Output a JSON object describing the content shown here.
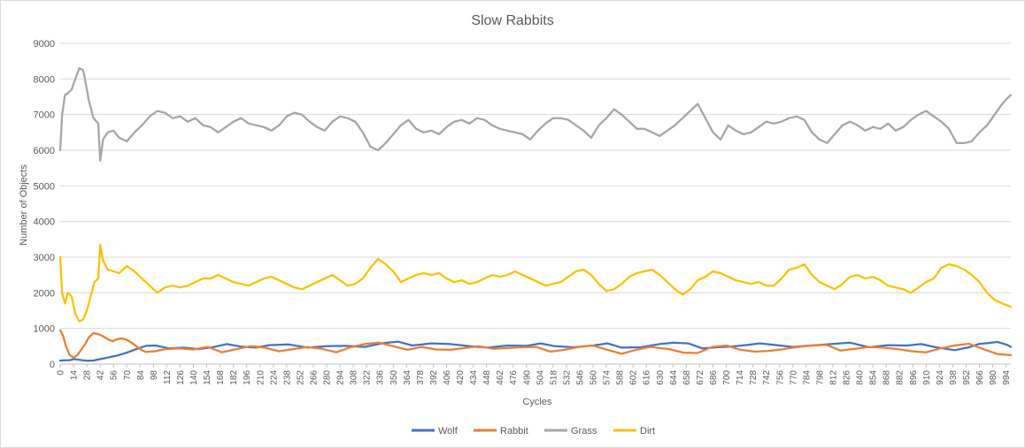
{
  "chart_data": {
    "type": "line",
    "title": "Slow Rabbits",
    "xlabel": "Cycles",
    "ylabel": "Number  of Objects",
    "ylim": [
      0,
      9000
    ],
    "yticks": [
      0,
      1000,
      2000,
      3000,
      4000,
      5000,
      6000,
      7000,
      8000,
      9000
    ],
    "xlim": [
      0,
      999
    ],
    "xtick_step": 14,
    "xtick_labels": [
      "0",
      "14",
      "28",
      "42",
      "56",
      "70",
      "84",
      "98",
      "112",
      "126",
      "140",
      "154",
      "168",
      "182",
      "196",
      "210",
      "224",
      "238",
      "252",
      "266",
      "280",
      "294",
      "308",
      "322",
      "336",
      "350",
      "364",
      "378",
      "392",
      "406",
      "420",
      "434",
      "448",
      "462",
      "476",
      "490",
      "504",
      "518",
      "532",
      "546",
      "560",
      "574",
      "588",
      "602",
      "616",
      "630",
      "644",
      "658",
      "672",
      "686",
      "700",
      "714",
      "728",
      "742",
      "756",
      "770",
      "784",
      "798",
      "812",
      "826",
      "840",
      "854",
      "868",
      "882",
      "896",
      "910",
      "924",
      "938",
      "952",
      "966",
      "980",
      "994"
    ],
    "grid": "horizontal",
    "legend_position": "bottom",
    "series": [
      {
        "name": "Wolf",
        "color": "#4472C4",
        "x": [
          0,
          5,
          10,
          15,
          20,
          28,
          35,
          42,
          50,
          60,
          70,
          80,
          90,
          100,
          115,
          130,
          145,
          160,
          175,
          190,
          205,
          220,
          240,
          260,
          280,
          300,
          320,
          340,
          355,
          370,
          390,
          410,
          430,
          450,
          470,
          490,
          505,
          520,
          540,
          560,
          575,
          590,
          610,
          630,
          645,
          660,
          675,
          690,
          705,
          720,
          735,
          750,
          770,
          790,
          810,
          830,
          850,
          870,
          890,
          905,
          920,
          940,
          955,
          965,
          975,
          985,
          995,
          999
        ],
        "y": [
          100,
          105,
          110,
          140,
          120,
          95,
          100,
          140,
          180,
          240,
          320,
          420,
          510,
          520,
          440,
          460,
          420,
          470,
          560,
          490,
          460,
          530,
          550,
          460,
          500,
          510,
          480,
          590,
          630,
          520,
          580,
          560,
          500,
          460,
          520,
          510,
          580,
          500,
          470,
          520,
          580,
          460,
          470,
          560,
          600,
          580,
          440,
          470,
          490,
          530,
          580,
          540,
          480,
          520,
          560,
          600,
          470,
          530,
          520,
          560,
          470,
          390,
          470,
          560,
          590,
          620,
          540,
          480
        ]
      },
      {
        "name": "Rabbit",
        "color": "#ED7D31",
        "x": [
          0,
          3,
          6,
          10,
          14,
          18,
          22,
          26,
          30,
          35,
          40,
          45,
          50,
          55,
          60,
          65,
          70,
          75,
          80,
          85,
          90,
          100,
          110,
          125,
          140,
          155,
          170,
          185,
          200,
          215,
          230,
          245,
          260,
          275,
          290,
          305,
          320,
          335,
          350,
          365,
          380,
          395,
          410,
          425,
          440,
          455,
          470,
          485,
          500,
          515,
          530,
          545,
          560,
          575,
          590,
          605,
          620,
          640,
          655,
          670,
          685,
          700,
          715,
          730,
          745,
          760,
          775,
          790,
          805,
          820,
          835,
          850,
          865,
          880,
          895,
          910,
          925,
          940,
          955,
          970,
          985,
          999
        ],
        "y": [
          950,
          800,
          500,
          250,
          180,
          250,
          400,
          550,
          750,
          870,
          840,
          780,
          700,
          640,
          700,
          720,
          680,
          600,
          500,
          400,
          340,
          360,
          420,
          440,
          410,
          480,
          330,
          420,
          500,
          460,
          360,
          420,
          480,
          430,
          330,
          470,
          560,
          600,
          500,
          400,
          480,
          410,
          400,
          450,
          500,
          430,
          450,
          470,
          480,
          350,
          400,
          480,
          520,
          400,
          290,
          400,
          480,
          420,
          320,
          310,
          480,
          520,
          400,
          350,
          370,
          420,
          480,
          520,
          540,
          380,
          430,
          480,
          460,
          420,
          360,
          330,
          440,
          520,
          570,
          420,
          280,
          250
        ]
      },
      {
        "name": "Grass",
        "color": "#A5A5A5",
        "x": [
          0,
          2,
          5,
          8,
          12,
          16,
          20,
          24,
          26,
          30,
          35,
          40,
          42,
          45,
          50,
          56,
          62,
          70,
          78,
          86,
          94,
          102,
          110,
          118,
          126,
          134,
          142,
          150,
          158,
          166,
          174,
          182,
          190,
          198,
          206,
          214,
          222,
          230,
          238,
          246,
          254,
          262,
          270,
          278,
          286,
          294,
          302,
          310,
          318,
          326,
          334,
          342,
          350,
          358,
          366,
          374,
          382,
          390,
          398,
          406,
          414,
          422,
          430,
          438,
          446,
          454,
          462,
          470,
          478,
          486,
          494,
          502,
          510,
          518,
          526,
          534,
          542,
          550,
          558,
          566,
          574,
          582,
          590,
          598,
          606,
          614,
          622,
          630,
          638,
          646,
          654,
          662,
          670,
          678,
          686,
          694,
          702,
          710,
          718,
          726,
          734,
          742,
          750,
          758,
          766,
          774,
          782,
          790,
          798,
          806,
          814,
          822,
          830,
          838,
          846,
          854,
          862,
          870,
          878,
          886,
          894,
          902,
          910,
          918,
          926,
          934,
          942,
          950,
          958,
          966,
          974,
          982,
          990,
          995,
          999
        ],
        "y": [
          6000,
          7000,
          7550,
          7600,
          7700,
          8000,
          8300,
          8250,
          8000,
          7400,
          6900,
          6750,
          5700,
          6300,
          6500,
          6550,
          6350,
          6250,
          6500,
          6700,
          6950,
          7100,
          7050,
          6900,
          6950,
          6800,
          6900,
          6700,
          6650,
          6500,
          6650,
          6800,
          6900,
          6750,
          6700,
          6650,
          6550,
          6700,
          6950,
          7050,
          7000,
          6800,
          6650,
          6550,
          6800,
          6950,
          6900,
          6800,
          6500,
          6100,
          6000,
          6200,
          6450,
          6700,
          6850,
          6600,
          6500,
          6550,
          6450,
          6650,
          6800,
          6850,
          6750,
          6900,
          6850,
          6700,
          6600,
          6550,
          6500,
          6450,
          6300,
          6550,
          6750,
          6900,
          6900,
          6850,
          6700,
          6550,
          6350,
          6700,
          6900,
          7150,
          7000,
          6800,
          6600,
          6600,
          6500,
          6400,
          6550,
          6700,
          6900,
          7100,
          7300,
          6900,
          6500,
          6300,
          6700,
          6550,
          6450,
          6500,
          6650,
          6800,
          6750,
          6800,
          6900,
          6950,
          6850,
          6500,
          6300,
          6200,
          6450,
          6700,
          6800,
          6700,
          6550,
          6650,
          6600,
          6750,
          6550,
          6650,
          6850,
          7000,
          7100,
          6950,
          6800,
          6600,
          6200,
          6200,
          6250,
          6500,
          6700,
          7000,
          7300,
          7450,
          7550
        ]
      },
      {
        "name": "Dirt",
        "color": "#FFC000",
        "x": [
          0,
          2,
          5,
          8,
          12,
          16,
          20,
          24,
          28,
          32,
          36,
          40,
          42,
          45,
          50,
          56,
          62,
          70,
          78,
          86,
          94,
          102,
          110,
          118,
          126,
          134,
          142,
          150,
          158,
          166,
          174,
          182,
          190,
          198,
          206,
          214,
          222,
          230,
          238,
          246,
          254,
          262,
          270,
          278,
          286,
          294,
          302,
          310,
          318,
          326,
          334,
          342,
          350,
          358,
          366,
          374,
          382,
          390,
          398,
          406,
          414,
          422,
          430,
          438,
          446,
          454,
          462,
          470,
          478,
          486,
          494,
          502,
          510,
          518,
          526,
          534,
          542,
          550,
          558,
          566,
          574,
          582,
          590,
          598,
          606,
          614,
          622,
          630,
          638,
          646,
          654,
          662,
          670,
          678,
          686,
          694,
          702,
          710,
          718,
          726,
          734,
          742,
          750,
          758,
          766,
          774,
          782,
          790,
          798,
          806,
          814,
          822,
          830,
          838,
          846,
          854,
          862,
          870,
          878,
          886,
          894,
          902,
          910,
          918,
          926,
          934,
          942,
          950,
          958,
          966,
          974,
          982,
          990,
          995,
          999
        ],
        "y": [
          3000,
          2000,
          1700,
          2000,
          1900,
          1400,
          1200,
          1250,
          1500,
          1900,
          2300,
          2400,
          3350,
          2900,
          2650,
          2600,
          2550,
          2750,
          2600,
          2400,
          2200,
          2000,
          2150,
          2200,
          2150,
          2200,
          2300,
          2400,
          2400,
          2500,
          2400,
          2300,
          2250,
          2200,
          2300,
          2400,
          2450,
          2350,
          2250,
          2150,
          2100,
          2200,
          2300,
          2400,
          2500,
          2350,
          2200,
          2250,
          2400,
          2700,
          2950,
          2800,
          2600,
          2300,
          2400,
          2500,
          2550,
          2500,
          2550,
          2400,
          2300,
          2350,
          2250,
          2300,
          2400,
          2500,
          2450,
          2500,
          2600,
          2500,
          2400,
          2300,
          2200,
          2250,
          2300,
          2450,
          2600,
          2650,
          2500,
          2250,
          2050,
          2100,
          2250,
          2450,
          2550,
          2600,
          2650,
          2500,
          2300,
          2100,
          1950,
          2100,
          2350,
          2450,
          2600,
          2550,
          2450,
          2350,
          2300,
          2250,
          2300,
          2200,
          2200,
          2400,
          2650,
          2700,
          2800,
          2500,
          2300,
          2200,
          2100,
          2250,
          2450,
          2500,
          2400,
          2450,
          2350,
          2200,
          2150,
          2100,
          2000,
          2150,
          2300,
          2400,
          2700,
          2800,
          2750,
          2650,
          2500,
          2300,
          2000,
          1800,
          1700,
          1650,
          1600
        ]
      }
    ]
  }
}
